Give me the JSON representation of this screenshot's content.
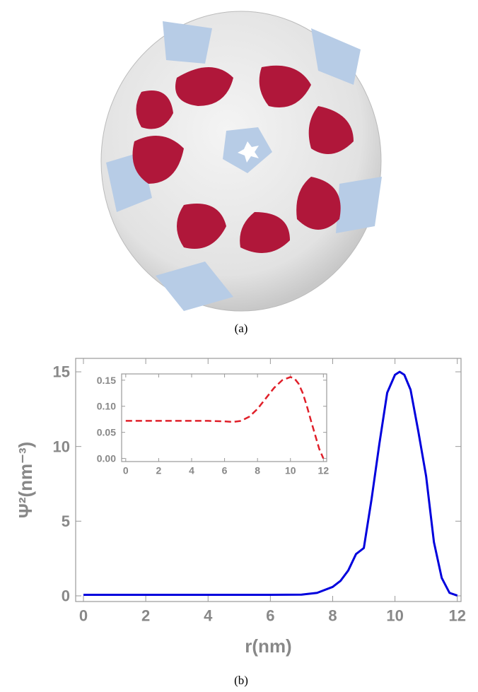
{
  "figure": {
    "caption_a": "(a)",
    "caption_b": "(b)"
  },
  "chart_data": [
    {
      "type": "line",
      "x_label": "r(nm)",
      "y_label": "Ψ²(nm⁻³)",
      "xlim": [
        -0.25,
        12.12
      ],
      "ylim": [
        -0.38,
        15.9
      ],
      "xticks": [
        0,
        2,
        4,
        6,
        8,
        10,
        12
      ],
      "yticks": [
        0,
        5,
        10,
        15
      ],
      "series": [
        {
          "color": "#0000dd",
          "line_style": "solid",
          "x": [
            0,
            1,
            2,
            3,
            4,
            5,
            6,
            7,
            7.5,
            8,
            8.25,
            8.5,
            8.75,
            9,
            9.25,
            9.5,
            9.75,
            10,
            10.15,
            10.3,
            10.5,
            10.75,
            11,
            11.25,
            11.5,
            11.75,
            12
          ],
          "values": [
            0.07,
            0.07,
            0.07,
            0.07,
            0.07,
            0.07,
            0.07,
            0.08,
            0.2,
            0.6,
            1.0,
            1.7,
            2.8,
            3.2,
            6.5,
            10.2,
            13.6,
            14.8,
            15.0,
            14.8,
            13.8,
            11.0,
            8.0,
            3.6,
            1.2,
            0.2,
            0.02
          ]
        }
      ]
    },
    {
      "type": "line",
      "xlim": [
        -0.25,
        12.2
      ],
      "ylim": [
        -0.006,
        0.162
      ],
      "xticks": [
        0,
        2,
        4,
        6,
        8,
        10,
        12
      ],
      "yticks": [
        {
          "value": 0,
          "label": "0.00"
        },
        {
          "value": 0.05,
          "label": "0.05"
        },
        {
          "value": 0.1,
          "label": "0.10"
        },
        {
          "value": 0.15,
          "label": "0.15"
        }
      ],
      "series": [
        {
          "color": "#e0202a",
          "line_style": "dashed",
          "x": [
            0,
            1,
            2,
            3,
            4,
            5,
            6,
            6.5,
            7,
            7.5,
            8,
            8.5,
            9,
            9.5,
            10,
            10.25,
            10.5,
            10.75,
            11,
            11.25,
            11.5,
            11.75,
            12
          ],
          "values": [
            0.072,
            0.072,
            0.072,
            0.072,
            0.072,
            0.072,
            0.071,
            0.07,
            0.072,
            0.08,
            0.095,
            0.115,
            0.135,
            0.15,
            0.156,
            0.153,
            0.143,
            0.125,
            0.1,
            0.072,
            0.045,
            0.018,
            0.0
          ]
        }
      ]
    }
  ]
}
